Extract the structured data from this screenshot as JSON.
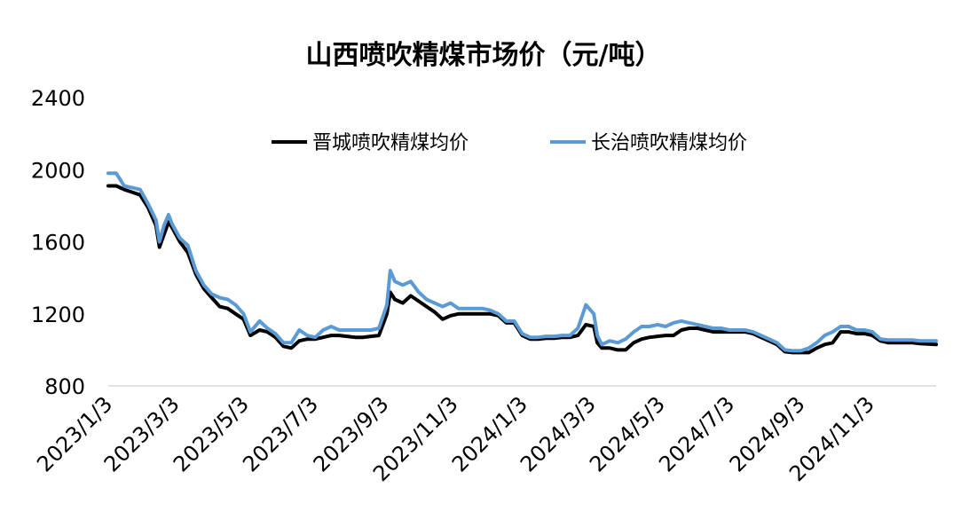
{
  "chart_data": {
    "type": "line",
    "title": "山西喷吹精煤市场价（元/吨）",
    "xlabel": "",
    "ylabel": "",
    "ylim": [
      800,
      2400
    ],
    "yticks": [
      "2400",
      "2000",
      "1600",
      "1200",
      "800"
    ],
    "yticks_values": [
      2400,
      2000,
      1600,
      1200,
      800
    ],
    "x_range": [
      "2023-01-03",
      "2024-12-31"
    ],
    "xticks": [
      "2023/1/3",
      "2023/3/3",
      "2023/5/3",
      "2023/7/3",
      "2023/9/3",
      "2023/11/3",
      "2024/1/3",
      "2024/3/3",
      "2024/5/3",
      "2024/7/3",
      "2024/9/3",
      "2024/11/3"
    ],
    "xticks_dates": [
      "2023-01-03",
      "2023-03-03",
      "2023-05-03",
      "2023-07-03",
      "2023-09-03",
      "2023-11-03",
      "2024-01-03",
      "2024-03-03",
      "2024-05-03",
      "2024-07-03",
      "2024-09-03",
      "2024-11-03"
    ],
    "grid": false,
    "legend_placement": "top",
    "series": [
      {
        "name": "晋城喷吹精煤均价",
        "color": "#000000",
        "points": [
          [
            "2023-01-03",
            1910
          ],
          [
            "2023-01-10",
            1910
          ],
          [
            "2023-01-17",
            1890
          ],
          [
            "2023-01-24",
            1875
          ],
          [
            "2023-01-31",
            1860
          ],
          [
            "2023-02-07",
            1790
          ],
          [
            "2023-02-14",
            1690
          ],
          [
            "2023-02-17",
            1570
          ],
          [
            "2023-02-21",
            1640
          ],
          [
            "2023-02-25",
            1710
          ],
          [
            "2023-02-28",
            1680
          ],
          [
            "2023-03-07",
            1600
          ],
          [
            "2023-03-14",
            1540
          ],
          [
            "2023-03-21",
            1420
          ],
          [
            "2023-03-28",
            1340
          ],
          [
            "2023-04-04",
            1290
          ],
          [
            "2023-04-11",
            1240
          ],
          [
            "2023-04-18",
            1230
          ],
          [
            "2023-04-25",
            1200
          ],
          [
            "2023-05-02",
            1170
          ],
          [
            "2023-05-08",
            1080
          ],
          [
            "2023-05-16",
            1110
          ],
          [
            "2023-05-23",
            1100
          ],
          [
            "2023-05-30",
            1070
          ],
          [
            "2023-06-06",
            1020
          ],
          [
            "2023-06-13",
            1010
          ],
          [
            "2023-06-20",
            1050
          ],
          [
            "2023-06-27",
            1060
          ],
          [
            "2023-07-04",
            1060
          ],
          [
            "2023-07-11",
            1070
          ],
          [
            "2023-07-18",
            1080
          ],
          [
            "2023-07-25",
            1080
          ],
          [
            "2023-08-01",
            1075
          ],
          [
            "2023-08-08",
            1070
          ],
          [
            "2023-08-15",
            1070
          ],
          [
            "2023-08-22",
            1075
          ],
          [
            "2023-08-29",
            1080
          ],
          [
            "2023-09-05",
            1200
          ],
          [
            "2023-09-08",
            1320
          ],
          [
            "2023-09-12",
            1280
          ],
          [
            "2023-09-19",
            1260
          ],
          [
            "2023-09-26",
            1300
          ],
          [
            "2023-10-03",
            1270
          ],
          [
            "2023-10-10",
            1240
          ],
          [
            "2023-10-17",
            1210
          ],
          [
            "2023-10-24",
            1170
          ],
          [
            "2023-10-31",
            1190
          ],
          [
            "2023-11-07",
            1200
          ],
          [
            "2023-11-14",
            1200
          ],
          [
            "2023-11-21",
            1200
          ],
          [
            "2023-11-28",
            1200
          ],
          [
            "2023-12-05",
            1200
          ],
          [
            "2023-12-12",
            1190
          ],
          [
            "2023-12-19",
            1150
          ],
          [
            "2023-12-26",
            1150
          ],
          [
            "2024-01-02",
            1080
          ],
          [
            "2024-01-09",
            1060
          ],
          [
            "2024-01-16",
            1060
          ],
          [
            "2024-01-23",
            1065
          ],
          [
            "2024-01-30",
            1065
          ],
          [
            "2024-02-06",
            1070
          ],
          [
            "2024-02-13",
            1070
          ],
          [
            "2024-02-20",
            1080
          ],
          [
            "2024-02-27",
            1140
          ],
          [
            "2024-03-05",
            1130
          ],
          [
            "2024-03-08",
            1040
          ],
          [
            "2024-03-12",
            1010
          ],
          [
            "2024-03-19",
            1010
          ],
          [
            "2024-03-26",
            1000
          ],
          [
            "2024-04-02",
            1000
          ],
          [
            "2024-04-09",
            1040
          ],
          [
            "2024-04-16",
            1060
          ],
          [
            "2024-04-23",
            1070
          ],
          [
            "2024-04-30",
            1075
          ],
          [
            "2024-05-07",
            1080
          ],
          [
            "2024-05-14",
            1080
          ],
          [
            "2024-05-21",
            1110
          ],
          [
            "2024-05-28",
            1120
          ],
          [
            "2024-06-04",
            1120
          ],
          [
            "2024-06-11",
            1110
          ],
          [
            "2024-06-18",
            1100
          ],
          [
            "2024-06-25",
            1100
          ],
          [
            "2024-07-02",
            1100
          ],
          [
            "2024-07-09",
            1100
          ],
          [
            "2024-07-16",
            1100
          ],
          [
            "2024-07-23",
            1090
          ],
          [
            "2024-07-30",
            1070
          ],
          [
            "2024-08-06",
            1050
          ],
          [
            "2024-08-13",
            1030
          ],
          [
            "2024-08-20",
            990
          ],
          [
            "2024-08-27",
            985
          ],
          [
            "2024-09-03",
            985
          ],
          [
            "2024-09-10",
            985
          ],
          [
            "2024-09-17",
            1010
          ],
          [
            "2024-09-24",
            1030
          ],
          [
            "2024-10-01",
            1040
          ],
          [
            "2024-10-08",
            1100
          ],
          [
            "2024-10-15",
            1100
          ],
          [
            "2024-10-22",
            1090
          ],
          [
            "2024-10-29",
            1090
          ],
          [
            "2024-11-05",
            1080
          ],
          [
            "2024-11-12",
            1050
          ],
          [
            "2024-11-19",
            1040
          ],
          [
            "2024-11-26",
            1040
          ],
          [
            "2024-12-03",
            1040
          ],
          [
            "2024-12-10",
            1040
          ],
          [
            "2024-12-17",
            1035
          ],
          [
            "2024-12-31",
            1030
          ]
        ]
      },
      {
        "name": "长治喷吹精煤均价",
        "color": "#5b9bd5",
        "points": [
          [
            "2023-01-03",
            1980
          ],
          [
            "2023-01-10",
            1980
          ],
          [
            "2023-01-17",
            1910
          ],
          [
            "2023-01-24",
            1900
          ],
          [
            "2023-01-31",
            1890
          ],
          [
            "2023-02-07",
            1810
          ],
          [
            "2023-02-14",
            1720
          ],
          [
            "2023-02-17",
            1600
          ],
          [
            "2023-02-21",
            1690
          ],
          [
            "2023-02-25",
            1750
          ],
          [
            "2023-02-28",
            1700
          ],
          [
            "2023-03-07",
            1620
          ],
          [
            "2023-03-14",
            1580
          ],
          [
            "2023-03-21",
            1440
          ],
          [
            "2023-03-28",
            1360
          ],
          [
            "2023-04-04",
            1310
          ],
          [
            "2023-04-11",
            1290
          ],
          [
            "2023-04-18",
            1280
          ],
          [
            "2023-04-25",
            1250
          ],
          [
            "2023-05-02",
            1200
          ],
          [
            "2023-05-08",
            1100
          ],
          [
            "2023-05-16",
            1160
          ],
          [
            "2023-05-23",
            1120
          ],
          [
            "2023-05-30",
            1090
          ],
          [
            "2023-06-06",
            1040
          ],
          [
            "2023-06-13",
            1040
          ],
          [
            "2023-06-20",
            1110
          ],
          [
            "2023-06-27",
            1080
          ],
          [
            "2023-07-04",
            1070
          ],
          [
            "2023-07-11",
            1110
          ],
          [
            "2023-07-18",
            1130
          ],
          [
            "2023-07-25",
            1110
          ],
          [
            "2023-08-01",
            1110
          ],
          [
            "2023-08-08",
            1110
          ],
          [
            "2023-08-15",
            1110
          ],
          [
            "2023-08-22",
            1110
          ],
          [
            "2023-08-29",
            1120
          ],
          [
            "2023-09-05",
            1250
          ],
          [
            "2023-09-08",
            1440
          ],
          [
            "2023-09-12",
            1380
          ],
          [
            "2023-09-19",
            1360
          ],
          [
            "2023-09-26",
            1380
          ],
          [
            "2023-10-03",
            1320
          ],
          [
            "2023-10-10",
            1280
          ],
          [
            "2023-10-17",
            1260
          ],
          [
            "2023-10-24",
            1240
          ],
          [
            "2023-10-31",
            1260
          ],
          [
            "2023-11-07",
            1230
          ],
          [
            "2023-11-14",
            1230
          ],
          [
            "2023-11-21",
            1230
          ],
          [
            "2023-11-28",
            1230
          ],
          [
            "2023-12-05",
            1220
          ],
          [
            "2023-12-12",
            1200
          ],
          [
            "2023-12-19",
            1160
          ],
          [
            "2023-12-26",
            1160
          ],
          [
            "2024-01-02",
            1090
          ],
          [
            "2024-01-09",
            1070
          ],
          [
            "2024-01-16",
            1070
          ],
          [
            "2024-01-23",
            1075
          ],
          [
            "2024-01-30",
            1075
          ],
          [
            "2024-02-06",
            1080
          ],
          [
            "2024-02-13",
            1080
          ],
          [
            "2024-02-20",
            1120
          ],
          [
            "2024-02-27",
            1250
          ],
          [
            "2024-03-05",
            1200
          ],
          [
            "2024-03-08",
            1080
          ],
          [
            "2024-03-12",
            1030
          ],
          [
            "2024-03-19",
            1050
          ],
          [
            "2024-03-26",
            1040
          ],
          [
            "2024-04-02",
            1060
          ],
          [
            "2024-04-09",
            1100
          ],
          [
            "2024-04-16",
            1130
          ],
          [
            "2024-04-23",
            1130
          ],
          [
            "2024-04-30",
            1140
          ],
          [
            "2024-05-07",
            1130
          ],
          [
            "2024-05-14",
            1150
          ],
          [
            "2024-05-21",
            1160
          ],
          [
            "2024-05-28",
            1150
          ],
          [
            "2024-06-04",
            1140
          ],
          [
            "2024-06-11",
            1130
          ],
          [
            "2024-06-18",
            1120
          ],
          [
            "2024-06-25",
            1120
          ],
          [
            "2024-07-02",
            1110
          ],
          [
            "2024-07-09",
            1110
          ],
          [
            "2024-07-16",
            1110
          ],
          [
            "2024-07-23",
            1100
          ],
          [
            "2024-07-30",
            1080
          ],
          [
            "2024-08-06",
            1060
          ],
          [
            "2024-08-13",
            1040
          ],
          [
            "2024-08-20",
            1000
          ],
          [
            "2024-08-27",
            995
          ],
          [
            "2024-09-03",
            995
          ],
          [
            "2024-09-10",
            1010
          ],
          [
            "2024-09-17",
            1040
          ],
          [
            "2024-09-24",
            1080
          ],
          [
            "2024-10-01",
            1100
          ],
          [
            "2024-10-08",
            1130
          ],
          [
            "2024-10-15",
            1130
          ],
          [
            "2024-10-22",
            1110
          ],
          [
            "2024-10-29",
            1110
          ],
          [
            "2024-11-05",
            1100
          ],
          [
            "2024-11-12",
            1060
          ],
          [
            "2024-11-19",
            1055
          ],
          [
            "2024-11-26",
            1055
          ],
          [
            "2024-12-03",
            1055
          ],
          [
            "2024-12-10",
            1055
          ],
          [
            "2024-12-17",
            1050
          ],
          [
            "2024-12-31",
            1050
          ]
        ]
      }
    ]
  }
}
